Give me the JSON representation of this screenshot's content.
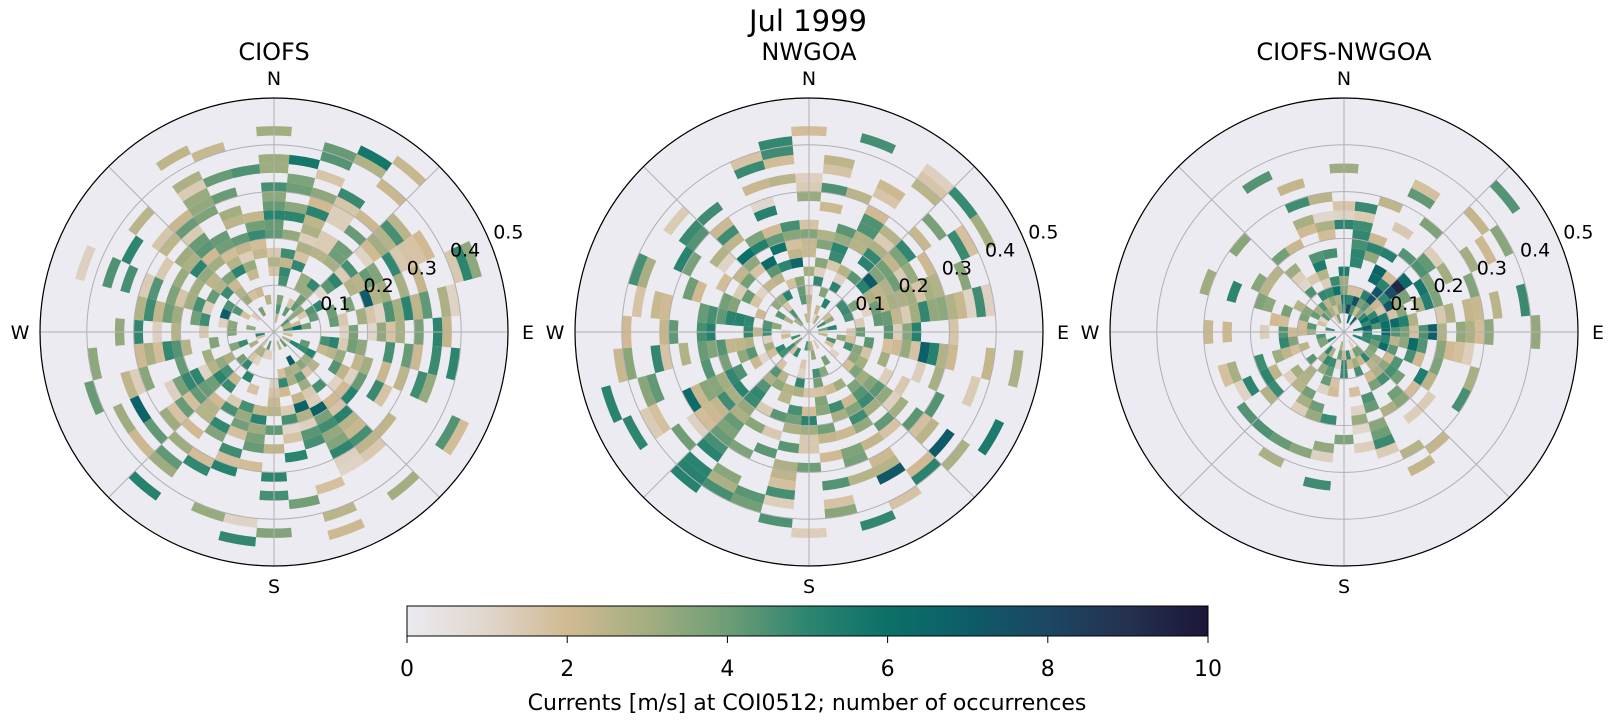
{
  "chart_data": {
    "type": "polar-histogram",
    "title": "Jul 1999",
    "panels": [
      {
        "title": "CIOFS",
        "seed": 11,
        "profile": "ciofs"
      },
      {
        "title": "NWGOA",
        "seed": 29,
        "profile": "nwgoa"
      },
      {
        "title": "CIOFS-NWGOA",
        "seed": 47,
        "profile": "diff"
      }
    ],
    "directions": [
      "N",
      "E",
      "S",
      "W"
    ],
    "radial_ticks": [
      "0.1",
      "0.2",
      "0.3",
      "0.4",
      "0.5"
    ],
    "radial_tick_values": [
      0.1,
      0.2,
      0.3,
      0.4,
      0.5
    ],
    "rmax": 0.5,
    "angle_bins": 36,
    "speed_bin_width": 0.02,
    "colorbar": {
      "label": "Currents [m/s] at COI0512; number of occurrences",
      "min": 0,
      "max": 10,
      "ticks": [
        "0",
        "2",
        "4",
        "6",
        "8",
        "10"
      ],
      "tick_values": [
        0,
        2,
        4,
        6,
        8,
        10
      ],
      "colors": [
        "#ecebf1",
        "#e0d6cc",
        "#d1ba93",
        "#a3ae80",
        "#6e9d76",
        "#2d8570",
        "#0b7168",
        "#0e5c68",
        "#1c4662",
        "#24314f",
        "#1b1638"
      ]
    },
    "face_color": "#ecebf2"
  }
}
